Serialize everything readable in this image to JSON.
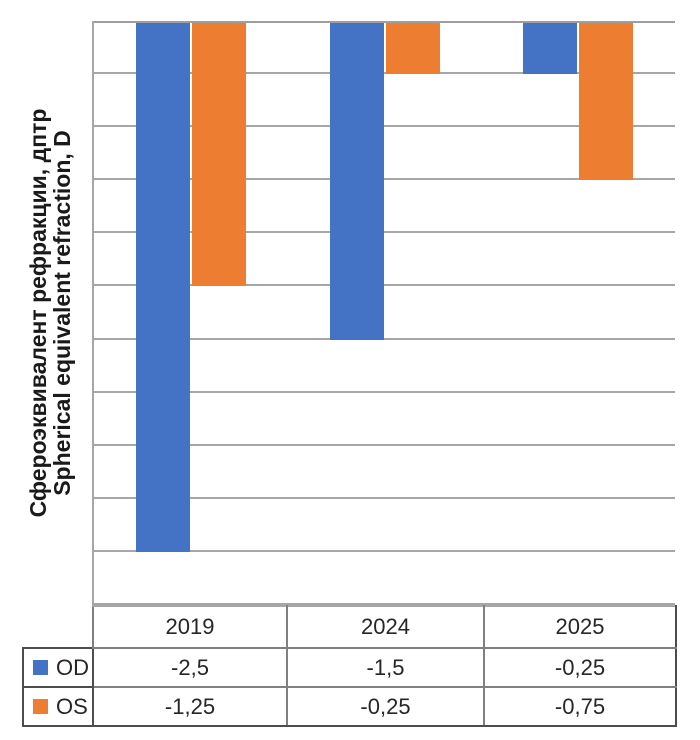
{
  "chart_data": {
    "type": "bar",
    "title": "",
    "xlabel": "",
    "ylabel_line1": "Сфероэквивалент рефракции, дптр",
    "ylabel_line2": "Spherical equivalent refraction, D",
    "categories": [
      "2019",
      "2024",
      "2025"
    ],
    "series": [
      {
        "name": "OD",
        "color": "#4472C4",
        "values": [
          -2.5,
          -1.5,
          -0.25
        ],
        "labels": [
          "-2,5",
          "-1,5",
          "-0,25"
        ]
      },
      {
        "name": "OS",
        "color": "#ED7D31",
        "values": [
          -1.25,
          -0.25,
          -0.75
        ],
        "labels": [
          "-1,25",
          "-0,25",
          "-0,75"
        ]
      }
    ],
    "ylim": [
      -2.75,
      0
    ],
    "grid_step": 0.25,
    "grid": true,
    "value_axis_labels_visible": false,
    "legend_position": "data-table-left",
    "colors": {
      "gridline": "#a6a6a6",
      "table_inner_border": "#808080",
      "table_outer_border": "#4d4d4d",
      "text": "#262626"
    }
  }
}
